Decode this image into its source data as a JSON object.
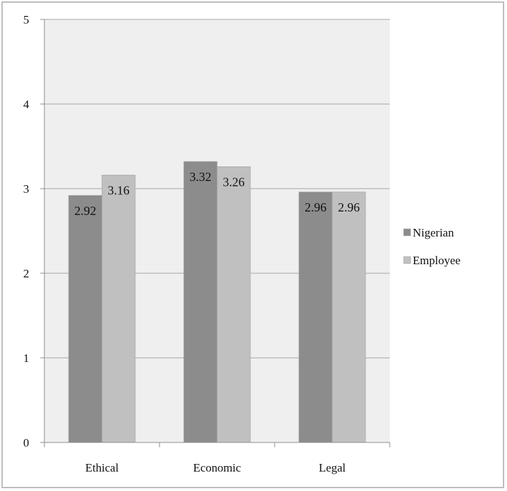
{
  "chart_data": {
    "type": "bar",
    "categories": [
      "Ethical",
      "Economic",
      "Legal"
    ],
    "series": [
      {
        "name": "Nigerian",
        "values": [
          2.92,
          3.32,
          2.96
        ],
        "color": "#8c8c8c"
      },
      {
        "name": "Employee",
        "values": [
          3.16,
          3.26,
          2.96
        ],
        "color": "#c0c0c0"
      }
    ],
    "data_labels": [
      [
        "2.92",
        "3.32",
        "2.96"
      ],
      [
        "3.16",
        "3.26",
        "2.96"
      ]
    ],
    "title": "",
    "xlabel": "",
    "ylabel": "",
    "ylim": [
      0,
      5
    ],
    "yticks": [
      "0",
      "1",
      "2",
      "3",
      "4",
      "5"
    ],
    "grid": true,
    "legend_position": "right",
    "plot_background": "#efefef"
  }
}
